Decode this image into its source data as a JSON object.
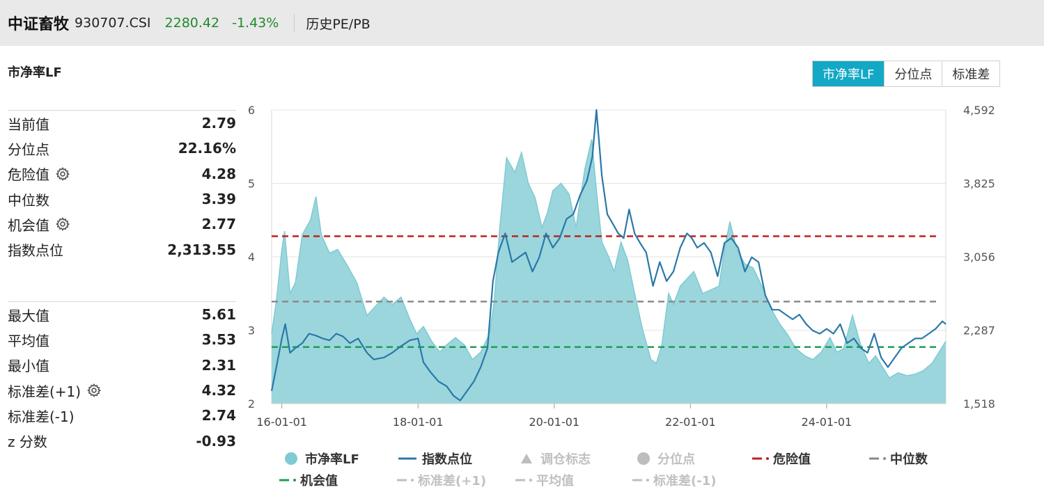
{
  "header": {
    "name": "中证畜牧",
    "code": "930707.CSI",
    "price": "2280.42",
    "change": "-1.43%",
    "history_label": "历史PE/PB"
  },
  "section_title": "市净率LF",
  "tabs": [
    {
      "label": "市净率LF",
      "active": true
    },
    {
      "label": "分位点",
      "active": false
    },
    {
      "label": "标准差",
      "active": false
    }
  ],
  "stats_top": [
    {
      "label": "当前值",
      "value": "2.79",
      "gear": false
    },
    {
      "label": "分位点",
      "value": "22.16%",
      "gear": false
    },
    {
      "label": "危险值",
      "value": "4.28",
      "gear": true
    },
    {
      "label": "中位数",
      "value": "3.39",
      "gear": false
    },
    {
      "label": "机会值",
      "value": "2.77",
      "gear": true
    },
    {
      "label": "指数点位",
      "value": "2,313.55",
      "gear": false
    }
  ],
  "stats_bottom": [
    {
      "label": "最大值",
      "value": "5.61",
      "gear": false
    },
    {
      "label": "平均值",
      "value": "3.53",
      "gear": false
    },
    {
      "label": "最小值",
      "value": "2.31",
      "gear": false
    },
    {
      "label": "标准差(+1)",
      "value": "4.32",
      "gear": true
    },
    {
      "label": "标准差(-1)",
      "value": "2.74",
      "gear": false
    },
    {
      "label": "z 分数",
      "value": "-0.93",
      "gear": false
    }
  ],
  "colors": {
    "area_fill": "#9bd6dd",
    "area_line": "#7fcad3",
    "index_line": "#2a78a8",
    "danger": "#c0201e",
    "median": "#8a8a8a",
    "opportunity": "#1e9e56",
    "inactive": "#bdbdbd",
    "accent": "#13a8c6"
  },
  "chart_data": {
    "type": "area",
    "x_labels": [
      "16-01-01",
      "18-01-01",
      "20-01-01",
      "22-01-01",
      "24-01-01"
    ],
    "x_domain": [
      2015.85,
      2025.75
    ],
    "x_label_positions": [
      2016.0,
      2018.0,
      2020.0,
      2022.0,
      2024.0
    ],
    "y_left_ticks": [
      "2",
      "3",
      "4",
      "5",
      "6"
    ],
    "y_left_range": [
      2,
      6
    ],
    "y_right_ticks": [
      "1,518",
      "2,287",
      "3,056",
      "3,825",
      "4,592"
    ],
    "y_right_range": [
      1518,
      4592
    ],
    "reference_lines": [
      {
        "name": "危险值",
        "value": 4.28,
        "color": "#c0201e"
      },
      {
        "name": "中位数",
        "value": 3.39,
        "color": "#8a8a8a"
      },
      {
        "name": "机会值",
        "value": 2.77,
        "color": "#1e9e56"
      }
    ],
    "series": [
      {
        "name": "市净率LF",
        "axis": "left",
        "x": [
          2015.85,
          2015.92,
          2016.0,
          2016.04,
          2016.12,
          2016.2,
          2016.3,
          2016.42,
          2016.5,
          2016.58,
          2016.7,
          2016.82,
          2016.95,
          2017.1,
          2017.25,
          2017.35,
          2017.5,
          2017.62,
          2017.75,
          2017.88,
          2017.98,
          2018.08,
          2018.2,
          2018.32,
          2018.42,
          2018.55,
          2018.68,
          2018.8,
          2018.92,
          2019.05,
          2019.12,
          2019.2,
          2019.3,
          2019.42,
          2019.52,
          2019.62,
          2019.72,
          2019.82,
          2019.9,
          2019.98,
          2020.1,
          2020.22,
          2020.32,
          2020.45,
          2020.55,
          2020.62,
          2020.7,
          2020.8,
          2020.88,
          2020.98,
          2021.08,
          2021.18,
          2021.3,
          2021.42,
          2021.5,
          2021.58,
          2021.68,
          2021.75,
          2021.85,
          2021.95,
          2022.05,
          2022.18,
          2022.3,
          2022.42,
          2022.5,
          2022.58,
          2022.68,
          2022.8,
          2022.92,
          2023.05,
          2023.18,
          2023.3,
          2023.42,
          2023.55,
          2023.68,
          2023.8,
          2023.92,
          2024.05,
          2024.15,
          2024.25,
          2024.38,
          2024.5,
          2024.62,
          2024.72,
          2024.82,
          2024.92,
          2025.05,
          2025.18,
          2025.3,
          2025.42,
          2025.55,
          2025.65,
          2025.75
        ],
        "values": [
          2.95,
          3.4,
          4.1,
          4.35,
          3.5,
          3.65,
          4.3,
          4.5,
          4.82,
          4.3,
          4.05,
          4.1,
          3.9,
          3.65,
          3.2,
          3.3,
          3.45,
          3.35,
          3.45,
          3.15,
          2.95,
          3.05,
          2.85,
          2.7,
          2.8,
          2.9,
          2.8,
          2.6,
          2.7,
          2.95,
          3.4,
          4.4,
          5.35,
          5.15,
          5.42,
          5.0,
          4.8,
          4.4,
          4.6,
          4.9,
          5.0,
          4.85,
          4.4,
          5.2,
          5.6,
          4.9,
          4.2,
          4.0,
          3.8,
          4.2,
          3.95,
          3.5,
          3.0,
          2.6,
          2.55,
          2.8,
          3.5,
          3.35,
          3.6,
          3.7,
          3.8,
          3.5,
          3.55,
          3.6,
          4.1,
          4.48,
          4.1,
          3.9,
          3.85,
          3.6,
          3.3,
          3.1,
          2.95,
          2.75,
          2.65,
          2.6,
          2.7,
          2.9,
          2.7,
          2.75,
          3.2,
          2.8,
          2.55,
          2.65,
          2.5,
          2.35,
          2.42,
          2.38,
          2.4,
          2.45,
          2.55,
          2.7,
          2.85
        ]
      },
      {
        "name": "指数点位",
        "axis": "right",
        "x": [
          2015.85,
          2015.92,
          2016.0,
          2016.05,
          2016.12,
          2016.2,
          2016.3,
          2016.4,
          2016.5,
          2016.6,
          2016.7,
          2016.8,
          2016.9,
          2017.0,
          2017.12,
          2017.25,
          2017.35,
          2017.5,
          2017.62,
          2017.75,
          2017.88,
          2018.0,
          2018.08,
          2018.18,
          2018.3,
          2018.42,
          2018.52,
          2018.62,
          2018.72,
          2018.82,
          2018.92,
          2019.02,
          2019.1,
          2019.18,
          2019.28,
          2019.38,
          2019.48,
          2019.58,
          2019.68,
          2019.78,
          2019.88,
          2019.98,
          2020.08,
          2020.18,
          2020.28,
          2020.38,
          2020.48,
          2020.56,
          2020.62,
          2020.7,
          2020.78,
          2020.86,
          2020.94,
          2021.02,
          2021.1,
          2021.18,
          2021.26,
          2021.35,
          2021.45,
          2021.55,
          2021.65,
          2021.75,
          2021.85,
          2021.95,
          2022.02,
          2022.1,
          2022.2,
          2022.3,
          2022.4,
          2022.5,
          2022.6,
          2022.7,
          2022.8,
          2022.9,
          2023.0,
          2023.1,
          2023.2,
          2023.3,
          2023.4,
          2023.5,
          2023.6,
          2023.7,
          2023.8,
          2023.9,
          2024.0,
          2024.1,
          2024.2,
          2024.3,
          2024.4,
          2024.5,
          2024.6,
          2024.7,
          2024.8,
          2024.9,
          2025.0,
          2025.1,
          2025.2,
          2025.3,
          2025.4,
          2025.5,
          2025.6,
          2025.7,
          2025.75
        ],
        "values": [
          1650,
          1900,
          2200,
          2350,
          2050,
          2100,
          2150,
          2250,
          2230,
          2200,
          2180,
          2250,
          2220,
          2150,
          2200,
          2050,
          1980,
          2000,
          2050,
          2120,
          2180,
          2200,
          1950,
          1850,
          1750,
          1700,
          1600,
          1550,
          1650,
          1750,
          1900,
          2100,
          2800,
          3100,
          3300,
          3000,
          3050,
          3100,
          2900,
          3050,
          3300,
          3150,
          3250,
          3450,
          3500,
          3700,
          3850,
          4100,
          4592,
          3900,
          3500,
          3400,
          3300,
          3250,
          3550,
          3300,
          3200,
          3100,
          2750,
          3000,
          2800,
          2900,
          3150,
          3300,
          3250,
          3150,
          3200,
          3100,
          2850,
          3200,
          3250,
          3150,
          2900,
          3050,
          3000,
          2650,
          2500,
          2500,
          2450,
          2400,
          2450,
          2350,
          2280,
          2250,
          2300,
          2250,
          2350,
          2150,
          2200,
          2100,
          2050,
          2250,
          2000,
          1900,
          2000,
          2100,
          2150,
          2200,
          2200,
          2250,
          2300,
          2380,
          2350
        ]
      }
    ],
    "legend": [
      {
        "label": "市净率LF",
        "active": true,
        "marker": "circle",
        "color": "#7fcad3"
      },
      {
        "label": "指数点位",
        "active": true,
        "marker": "line",
        "color": "#2a78a8"
      },
      {
        "label": "调仓标志",
        "active": false,
        "marker": "triangle",
        "color": "#bdbdbd"
      },
      {
        "label": "分位点",
        "active": false,
        "marker": "circle",
        "color": "#bdbdbd"
      },
      {
        "label": "危险值",
        "active": true,
        "marker": "dash",
        "color": "#c0201e"
      },
      {
        "label": "中位数",
        "active": true,
        "marker": "dash",
        "color": "#8a8a8a"
      },
      {
        "label": "机会值",
        "active": true,
        "marker": "dash",
        "color": "#1e9e56"
      },
      {
        "label": "标准差(+1)",
        "active": false,
        "marker": "dash",
        "color": "#bdbdbd"
      },
      {
        "label": "平均值",
        "active": false,
        "marker": "dash",
        "color": "#bdbdbd"
      },
      {
        "label": "标准差(-1)",
        "active": false,
        "marker": "dash",
        "color": "#bdbdbd"
      }
    ]
  }
}
